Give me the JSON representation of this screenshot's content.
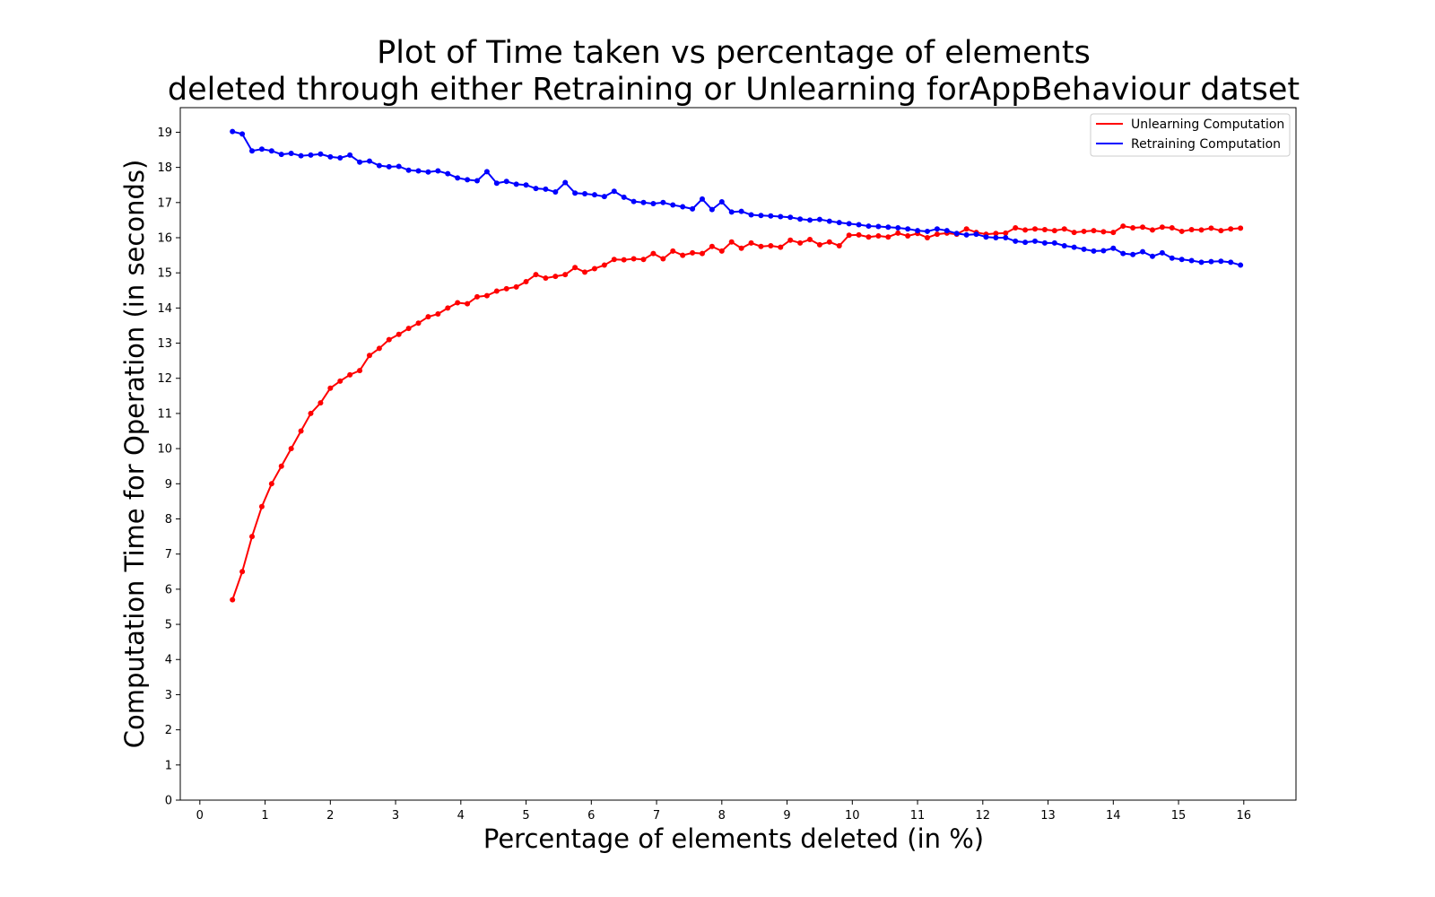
{
  "chart_data": {
    "type": "line",
    "title": [
      "Plot of Time taken vs  percentage of elements",
      "deleted through either Retraining or Unlearning forAppBehaviour datset"
    ],
    "xlabel": "Percentage of elements deleted (in %)",
    "ylabel": "Computation Time for Operation (in seconds)",
    "xlim": [
      -0.3,
      16.8
    ],
    "ylim": [
      0,
      19.7
    ],
    "xticks": [
      0,
      1,
      2,
      3,
      4,
      5,
      6,
      7,
      8,
      9,
      10,
      11,
      12,
      13,
      14,
      15,
      16
    ],
    "yticks": [
      0,
      1,
      2,
      3,
      4,
      5,
      6,
      7,
      8,
      9,
      10,
      11,
      12,
      13,
      14,
      15,
      16,
      17,
      18,
      19
    ],
    "grid": false,
    "legend_position": "top-right",
    "x": [
      0.5,
      0.65,
      0.8,
      0.95,
      1.1,
      1.25,
      1.4,
      1.55,
      1.7,
      1.85,
      2.0,
      2.15,
      2.3,
      2.45,
      2.6,
      2.75,
      2.9,
      3.05,
      3.2,
      3.35,
      3.5,
      3.65,
      3.8,
      3.95,
      4.1,
      4.25,
      4.4,
      4.55,
      4.7,
      4.85,
      5.0,
      5.15,
      5.3,
      5.45,
      5.6,
      5.75,
      5.9,
      6.05,
      6.2,
      6.35,
      6.5,
      6.65,
      6.8,
      6.95,
      7.1,
      7.25,
      7.4,
      7.55,
      7.7,
      7.85,
      8.0,
      8.15,
      8.3,
      8.45,
      8.6,
      8.75,
      8.9,
      9.05,
      9.2,
      9.35,
      9.5,
      9.65,
      9.8,
      9.95,
      10.1,
      10.25,
      10.4,
      10.55,
      10.7,
      10.85,
      11.0,
      11.15,
      11.3,
      11.45,
      11.6,
      11.75,
      11.9,
      12.05,
      12.2,
      12.35,
      12.5,
      12.65,
      12.8,
      12.95,
      13.1,
      13.25,
      13.4,
      13.55,
      13.7,
      13.85,
      14.0,
      14.15,
      14.3,
      14.45,
      14.6,
      14.75,
      14.9,
      15.05,
      15.2,
      15.35,
      15.5,
      15.65,
      15.8,
      15.95
    ],
    "series": [
      {
        "name": "Unlearning Computation",
        "color": "#ff0000",
        "values": [
          5.7,
          6.5,
          7.5,
          8.35,
          9.0,
          9.5,
          10.0,
          10.5,
          11.0,
          11.3,
          11.72,
          11.92,
          12.1,
          12.22,
          12.65,
          12.85,
          13.1,
          13.25,
          13.42,
          13.57,
          13.75,
          13.83,
          14.0,
          14.15,
          14.12,
          14.32,
          14.35,
          14.48,
          14.55,
          14.6,
          14.75,
          14.95,
          14.85,
          14.9,
          14.95,
          15.15,
          15.02,
          15.12,
          15.22,
          15.38,
          15.37,
          15.4,
          15.38,
          15.55,
          15.4,
          15.62,
          15.5,
          15.57,
          15.55,
          15.75,
          15.62,
          15.88,
          15.7,
          15.85,
          15.75,
          15.77,
          15.73,
          15.93,
          15.85,
          15.95,
          15.8,
          15.88,
          15.77,
          16.07,
          16.08,
          16.02,
          16.05,
          16.02,
          16.13,
          16.05,
          16.12,
          16.0,
          16.1,
          16.13,
          16.1,
          16.25,
          16.15,
          16.1,
          16.12,
          16.13,
          16.28,
          16.22,
          16.25,
          16.23,
          16.2,
          16.25,
          16.15,
          16.18,
          16.2,
          16.17,
          16.15,
          16.33,
          16.28,
          16.3,
          16.22,
          16.3,
          16.28,
          16.18,
          16.23,
          16.22,
          16.27,
          16.2,
          16.25,
          16.27
        ]
      },
      {
        "name": "Retraining Computation",
        "color": "#0000ff",
        "values": [
          19.02,
          18.95,
          18.47,
          18.52,
          18.47,
          18.37,
          18.4,
          18.33,
          18.35,
          18.38,
          18.3,
          18.27,
          18.35,
          18.15,
          18.18,
          18.05,
          18.02,
          18.03,
          17.92,
          17.9,
          17.87,
          17.9,
          17.82,
          17.7,
          17.65,
          17.62,
          17.88,
          17.55,
          17.6,
          17.52,
          17.5,
          17.4,
          17.38,
          17.3,
          17.57,
          17.27,
          17.25,
          17.22,
          17.17,
          17.32,
          17.15,
          17.03,
          17.0,
          16.97,
          17.0,
          16.93,
          16.88,
          16.82,
          17.1,
          16.8,
          17.02,
          16.73,
          16.75,
          16.65,
          16.63,
          16.62,
          16.6,
          16.58,
          16.53,
          16.5,
          16.52,
          16.47,
          16.43,
          16.4,
          16.37,
          16.33,
          16.32,
          16.3,
          16.28,
          16.25,
          16.2,
          16.18,
          16.25,
          16.2,
          16.12,
          16.08,
          16.1,
          16.02,
          16.0,
          16.0,
          15.9,
          15.87,
          15.9,
          15.85,
          15.85,
          15.77,
          15.73,
          15.67,
          15.62,
          15.63,
          15.7,
          15.55,
          15.52,
          15.6,
          15.47,
          15.57,
          15.42,
          15.38,
          15.35,
          15.3,
          15.32,
          15.33,
          15.3,
          15.22
        ]
      }
    ]
  }
}
